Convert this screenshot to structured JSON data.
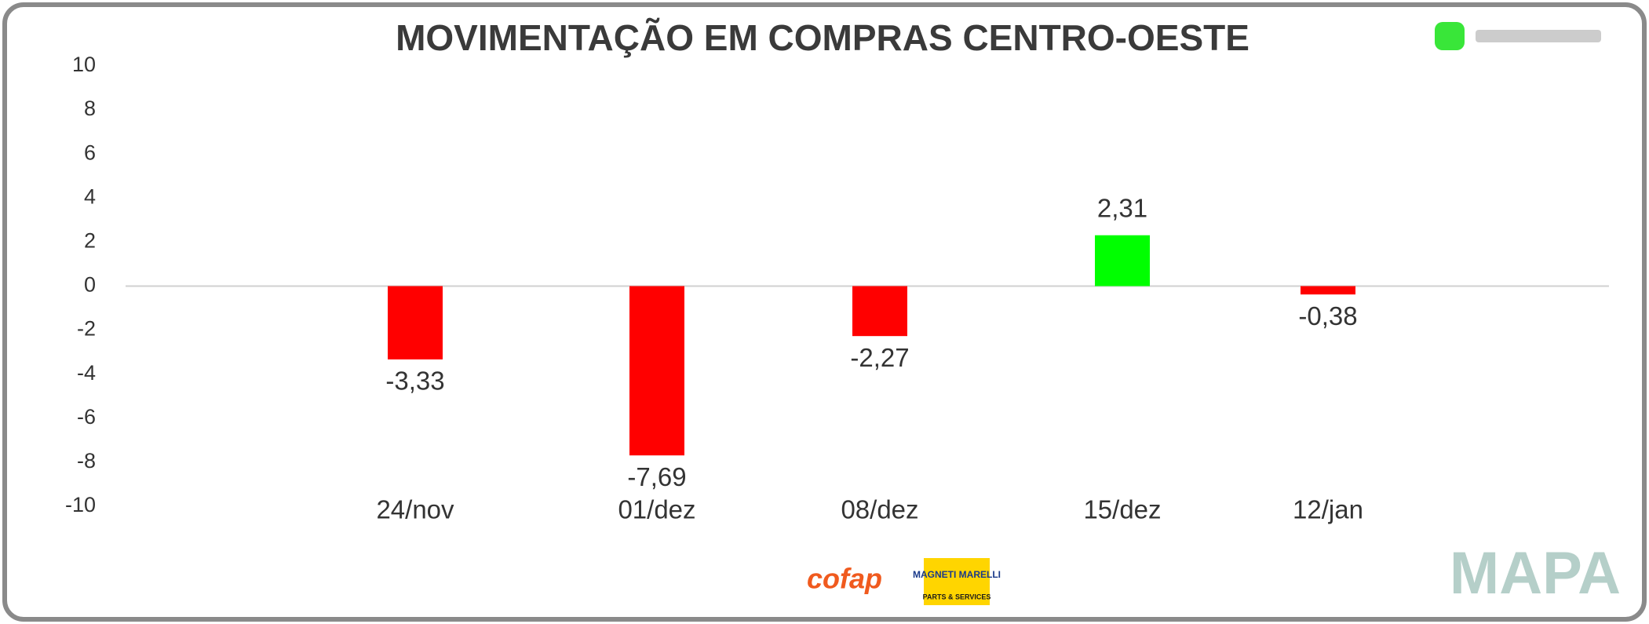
{
  "chart_data": {
    "type": "bar",
    "title": "MOVIMENTAÇÃO EM COMPRAS CENTRO-OESTE",
    "categories": [
      "24/nov",
      "01/dez",
      "08/dez",
      "15/dez",
      "12/jan"
    ],
    "values": [
      -3.33,
      -7.69,
      -2.27,
      2.31,
      -0.38
    ],
    "value_labels": [
      "-3,33",
      "-7,69",
      "-2,27",
      "2,31",
      "-0,38"
    ],
    "colors": [
      "#ff0000",
      "#ff0000",
      "#ff0000",
      "#00ff00",
      "#ff0000"
    ],
    "ylim": [
      -10,
      10
    ],
    "yticks": [
      -10,
      -8,
      -6,
      -4,
      -2,
      0,
      2,
      4,
      6,
      8,
      10
    ],
    "grid": false,
    "logos": [
      "cofap",
      "MAGNETI MARELLI",
      "PARTS & SERVICES",
      "MAPA"
    ]
  }
}
